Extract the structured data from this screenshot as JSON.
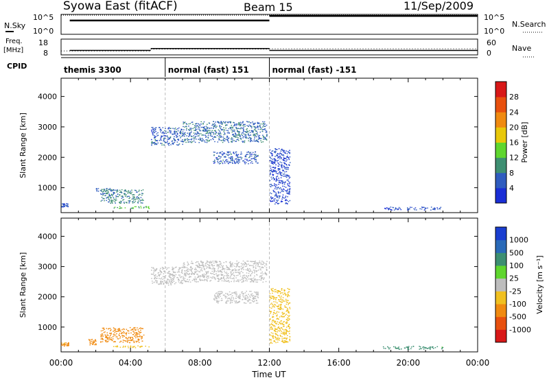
{
  "header": {
    "station": "Syowa East (fitACF)",
    "beam": "Beam 15",
    "date": "11/Sep/2009"
  },
  "noise_panel": {
    "left_label": "N.Sky",
    "right_label": "N.Search",
    "left_ticks": [
      "10^5",
      "10^0"
    ],
    "right_ticks": [
      "10^5",
      "10^0"
    ],
    "sky_levels": [
      {
        "start": "00:30",
        "end": "12:00",
        "value": 3.6
      },
      {
        "start": "12:00",
        "end": "24:00",
        "value": 4.8
      }
    ],
    "search_level": 5.0
  },
  "freq_panel": {
    "left_label_1": "Freq.",
    "left_label_2": "[MHz]",
    "right_label": "Nave",
    "left_ticks": [
      "18",
      "8"
    ],
    "right_ticks": [
      "60",
      "0"
    ],
    "freq_steps": [
      {
        "start": "00:30",
        "end": "05:10",
        "value": 10.8
      },
      {
        "start": "05:10",
        "end": "12:00",
        "value": 12.0
      },
      {
        "start": "12:00",
        "end": "24:00",
        "value": 10.8
      }
    ],
    "nave_steps": [
      {
        "start": "00:00",
        "end": "05:10",
        "value": 15
      },
      {
        "start": "05:10",
        "end": "12:00",
        "value": 22
      },
      {
        "start": "12:00",
        "end": "24:00",
        "value": 23
      }
    ]
  },
  "cpid_panel": {
    "label": "CPID",
    "segments": [
      {
        "label": "themis 3300",
        "start": "00:00",
        "end": "06:00"
      },
      {
        "label": "normal (fast) 151",
        "start": "06:00",
        "end": "12:00"
      },
      {
        "label": "normal (fast) -151",
        "start": "12:00",
        "end": "24:00"
      }
    ]
  },
  "chart_data": [
    {
      "type": "heatmap",
      "quantity": "power",
      "xlabel": "",
      "ylabel": "Slant Range [km]",
      "xlim": [
        "00:00",
        "24:00"
      ],
      "ylim": [
        180,
        4600
      ],
      "ytick_values": [
        1000,
        2000,
        3000,
        4000
      ],
      "ytick_labels": [
        "1000",
        "2000",
        "3000",
        "4000"
      ],
      "colorbar_label": "Power [dB]",
      "colorbar_ticks": [
        "4",
        "8",
        "12",
        "16",
        "20",
        "24",
        "28"
      ],
      "colorbar_colors": [
        "#1a2ed6",
        "#2f5cbf",
        "#3e8f72",
        "#5fd62e",
        "#e8c80a",
        "#f08a10",
        "#e8500e",
        "#d81818"
      ],
      "regions": [
        {
          "start": "00:00",
          "end": "00:25",
          "r0": 380,
          "r1": 500,
          "value": 5
        },
        {
          "start": "02:00",
          "end": "03:00",
          "r0": 900,
          "r1": 1000,
          "value": 7
        },
        {
          "start": "02:15",
          "end": "04:45",
          "r0": 500,
          "r1": 950,
          "value": 9
        },
        {
          "start": "03:00",
          "end": "05:05",
          "r0": 330,
          "r1": 400,
          "value": 13
        },
        {
          "start": "05:10",
          "end": "07:00",
          "r0": 2400,
          "r1": 3000,
          "value": 6
        },
        {
          "start": "07:00",
          "end": "11:50",
          "r0": 2500,
          "r1": 3200,
          "value": 7
        },
        {
          "start": "08:45",
          "end": "11:20",
          "r0": 1800,
          "r1": 2200,
          "value": 6
        },
        {
          "start": "12:00",
          "end": "13:10",
          "r0": 480,
          "r1": 2300,
          "value": 4
        },
        {
          "start": "18:30",
          "end": "22:00",
          "r0": 280,
          "r1": 380,
          "value": 5
        }
      ]
    },
    {
      "type": "heatmap",
      "quantity": "velocity",
      "xlabel": "Time UT",
      "ylabel": "Slant Range [km]",
      "xlim": [
        "00:00",
        "24:00"
      ],
      "ylim": [
        180,
        4600
      ],
      "xtick_values": [
        "00:00",
        "04:00",
        "08:00",
        "12:00",
        "16:00",
        "20:00",
        "00:00"
      ],
      "ytick_values": [
        1000,
        2000,
        3000,
        4000
      ],
      "ytick_labels": [
        "1000",
        "2000",
        "3000",
        "4000"
      ],
      "colorbar_label": "Velocity [m s⁻¹]",
      "colorbar_ticks": [
        "1000",
        "500",
        "100",
        "25",
        "-25",
        "-100",
        "-500",
        "-1000"
      ],
      "colorbar_colors": [
        "#1a3ed0",
        "#2a6ab8",
        "#3c8f72",
        "#5fd62e",
        "#bdbdbd",
        "#f0c020",
        "#f08a10",
        "#e8500e",
        "#d81818"
      ],
      "regions": [
        {
          "start": "00:00",
          "end": "00:25",
          "r0": 380,
          "r1": 500,
          "value": -150
        },
        {
          "start": "01:30",
          "end": "02:00",
          "r0": 420,
          "r1": 620,
          "value": -300
        },
        {
          "start": "02:15",
          "end": "04:45",
          "r0": 500,
          "r1": 1000,
          "value": -300
        },
        {
          "start": "03:00",
          "end": "05:05",
          "r0": 330,
          "r1": 400,
          "value": -60
        },
        {
          "start": "05:10",
          "end": "07:00",
          "r0": 2400,
          "r1": 3000,
          "value": 0
        },
        {
          "start": "07:00",
          "end": "11:50",
          "r0": 2500,
          "r1": 3200,
          "value": 0
        },
        {
          "start": "08:45",
          "end": "11:20",
          "r0": 1800,
          "r1": 2200,
          "value": 0
        },
        {
          "start": "12:00",
          "end": "13:10",
          "r0": 480,
          "r1": 2300,
          "value": -60
        },
        {
          "start": "18:30",
          "end": "22:00",
          "r0": 280,
          "r1": 380,
          "value": 150
        }
      ]
    }
  ]
}
